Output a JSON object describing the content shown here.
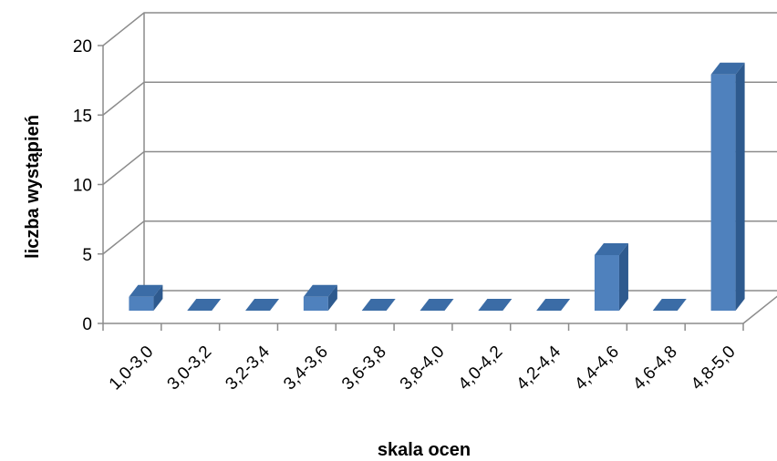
{
  "chart_data": {
    "type": "bar",
    "title": "",
    "xlabel": "skala ocen",
    "ylabel": "liczba wystąpień",
    "categories": [
      "1,0-3,0",
      "3,0-3,2",
      "3,2-3,4",
      "3,4-3,6",
      "3,6-3,8",
      "3,8-4,0",
      "4,0-4,2",
      "4,2-4,4",
      "4,4-4,6",
      "4,6-4,8",
      "4,8-5,0"
    ],
    "values": [
      1,
      0,
      0,
      1,
      0,
      0,
      0,
      0,
      4,
      0,
      17
    ],
    "ylim": [
      0,
      20
    ],
    "yticks": [
      "0",
      "5",
      "10",
      "15",
      "20"
    ],
    "grid": true,
    "style": "3d-column",
    "colors": {
      "bar_front": "#4F81BD",
      "bar_side": "#2E5A8E",
      "bar_top": "#3B6CA6",
      "grid": "#8C8C8C"
    }
  }
}
